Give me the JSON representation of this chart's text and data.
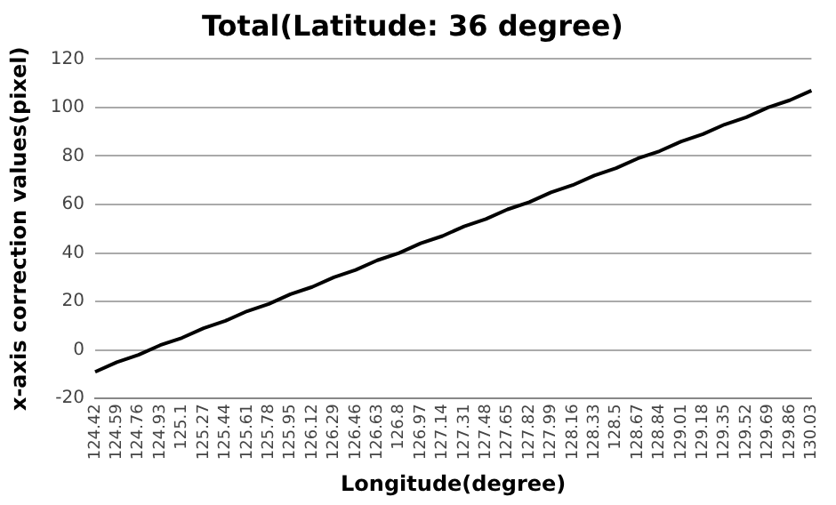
{
  "chart_data": {
    "type": "line",
    "title": "Total(Latitude: 36 degree)",
    "xlabel": "Longitude(degree)",
    "ylabel": "x-axis correction values(pixel)",
    "categories": [
      "124.42",
      "124.59",
      "124.76",
      "124.93",
      "125.1",
      "125.27",
      "125.44",
      "125.61",
      "125.78",
      "125.95",
      "126.12",
      "126.29",
      "126.46",
      "126.63",
      "126.8",
      "126.97",
      "127.14",
      "127.31",
      "127.48",
      "127.65",
      "127.82",
      "127.99",
      "128.16",
      "128.33",
      "128.5",
      "128.67",
      "128.84",
      "129.01",
      "129.18",
      "129.35",
      "129.52",
      "129.69",
      "129.86",
      "130.03"
    ],
    "series": [
      {
        "color": "#000000",
        "values": [
          -9,
          -5,
          -2,
          2,
          5,
          9,
          12,
          16,
          19,
          23,
          26,
          30,
          33,
          37,
          40,
          44,
          47,
          51,
          54,
          58,
          61,
          65,
          68,
          72,
          75,
          79,
          82,
          86,
          89,
          93,
          96,
          100,
          103,
          107
        ]
      }
    ],
    "ylim": [
      -20,
      120
    ],
    "yticks": [
      -20,
      0,
      20,
      40,
      60,
      80,
      100,
      120
    ],
    "grid": "y",
    "legend": false,
    "marker": "none",
    "line_style": "solid"
  }
}
